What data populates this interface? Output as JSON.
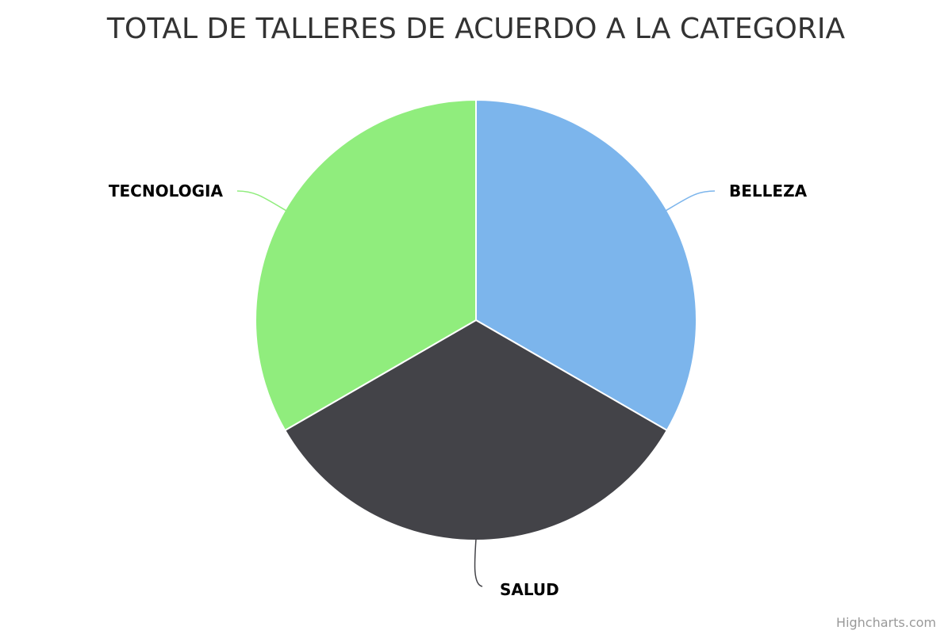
{
  "chart_data": {
    "type": "pie",
    "title": "TOTAL DE TALLERES DE ACUERDO A LA CATEGORIA",
    "categories": [
      "BELLEZA",
      "SALUD",
      "TECNOLOGIA"
    ],
    "values": [
      1,
      1,
      1
    ],
    "colors": [
      "#7cb5ec",
      "#434348",
      "#90ed7d"
    ],
    "legend": "none"
  },
  "credits": "Highcharts.com"
}
